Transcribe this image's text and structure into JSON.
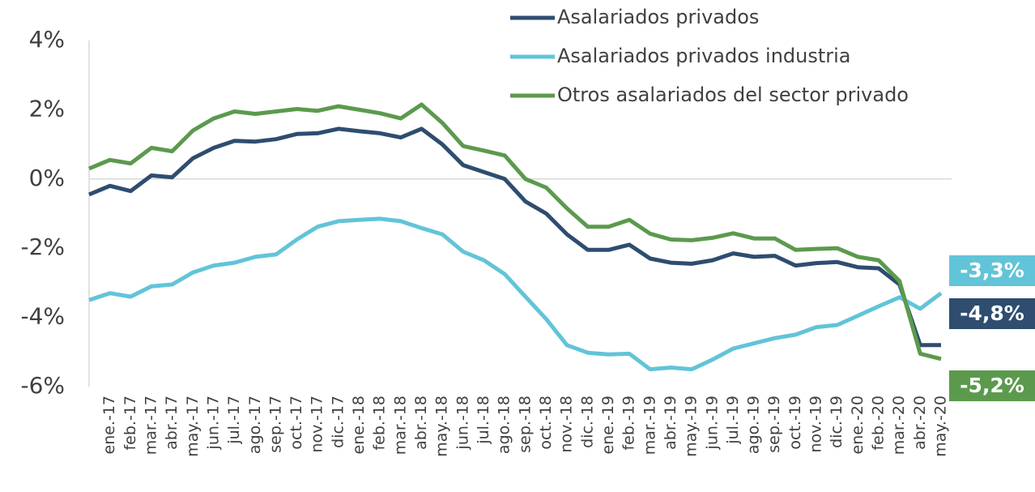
{
  "chart_data": {
    "type": "line",
    "categories": [
      null,
      "ene.-17",
      "feb.-17",
      "mar.-17",
      "abr.-17",
      "may.-17",
      "jun.-17",
      "jul.-17",
      "ago.-17",
      "sep.-17",
      "oct.-17",
      "nov.-17",
      "dic.-17",
      "ene.-18",
      "feb.-18",
      "mar.-18",
      "abr.-18",
      "may.-18",
      "jun.-18",
      "jul.-18",
      "ago.-18",
      "sep.-18",
      "oct.-18",
      "nov.-18",
      "dic.-18",
      "ene.-19",
      "feb.-19",
      "mar.-19",
      "abr.-19",
      "may.-19",
      "jun.-19",
      "jul.-19",
      "ago.-19",
      "sep.-19",
      "oct.-19",
      "nov.-19",
      "dic.-19",
      "ene.-20",
      "feb.-20",
      "mar.-20",
      "abr.-20",
      "may.-20"
    ],
    "series": [
      {
        "name": "Asalariados privados",
        "color": "#2e4d6f",
        "end_label": "-4,8%",
        "values": [
          -0.45,
          -0.2,
          -0.35,
          0.1,
          0.05,
          0.6,
          0.9,
          1.1,
          1.08,
          1.15,
          1.3,
          1.32,
          1.45,
          1.38,
          1.32,
          1.2,
          1.45,
          1.0,
          0.4,
          0.2,
          0.0,
          -0.65,
          -1.0,
          -1.6,
          -2.05,
          -2.05,
          -1.9,
          -2.3,
          -2.42,
          -2.45,
          -2.35,
          -2.15,
          -2.25,
          -2.22,
          -2.5,
          -2.43,
          -2.4,
          -2.55,
          -2.58,
          -3.05,
          -4.8,
          -4.8
        ]
      },
      {
        "name": "Asalariados privados industria",
        "color": "#62c4d8",
        "end_label": "-3,3%",
        "values": [
          -3.5,
          -3.3,
          -3.4,
          -3.1,
          -3.05,
          -2.7,
          -2.5,
          -2.42,
          -2.25,
          -2.18,
          -1.75,
          -1.38,
          -1.22,
          -1.18,
          -1.15,
          -1.22,
          -1.42,
          -1.6,
          -2.1,
          -2.35,
          -2.75,
          -3.4,
          -4.05,
          -4.8,
          -5.02,
          -5.07,
          -5.05,
          -5.5,
          -5.45,
          -5.5,
          -5.22,
          -4.9,
          -4.75,
          -4.6,
          -4.5,
          -4.28,
          -4.22,
          -3.95,
          -3.68,
          -3.42,
          -3.75,
          -3.3
        ]
      },
      {
        "name": "Otros asalariados del sector privado",
        "color": "#5b9a4d",
        "end_label": "-5,2%",
        "values": [
          0.3,
          0.55,
          0.45,
          0.9,
          0.8,
          1.4,
          1.75,
          1.95,
          1.88,
          1.95,
          2.02,
          1.97,
          2.1,
          2.0,
          1.9,
          1.75,
          2.15,
          1.62,
          0.95,
          0.82,
          0.68,
          0.0,
          -0.25,
          -0.85,
          -1.38,
          -1.38,
          -1.18,
          -1.58,
          -1.75,
          -1.77,
          -1.7,
          -1.57,
          -1.72,
          -1.72,
          -2.05,
          -2.02,
          -2.0,
          -2.25,
          -2.35,
          -2.95,
          -5.05,
          -5.2
        ]
      }
    ],
    "ylim": [
      -6,
      4
    ],
    "yticks": [
      {
        "value": -6,
        "label": "-6%"
      },
      {
        "value": -4,
        "label": "-4%"
      },
      {
        "value": -2,
        "label": "-2%"
      },
      {
        "value": 0,
        "label": "0%"
      },
      {
        "value": 2,
        "label": "2%"
      },
      {
        "value": 4,
        "label": "4%"
      }
    ],
    "grid": false,
    "legend": "top-right"
  }
}
